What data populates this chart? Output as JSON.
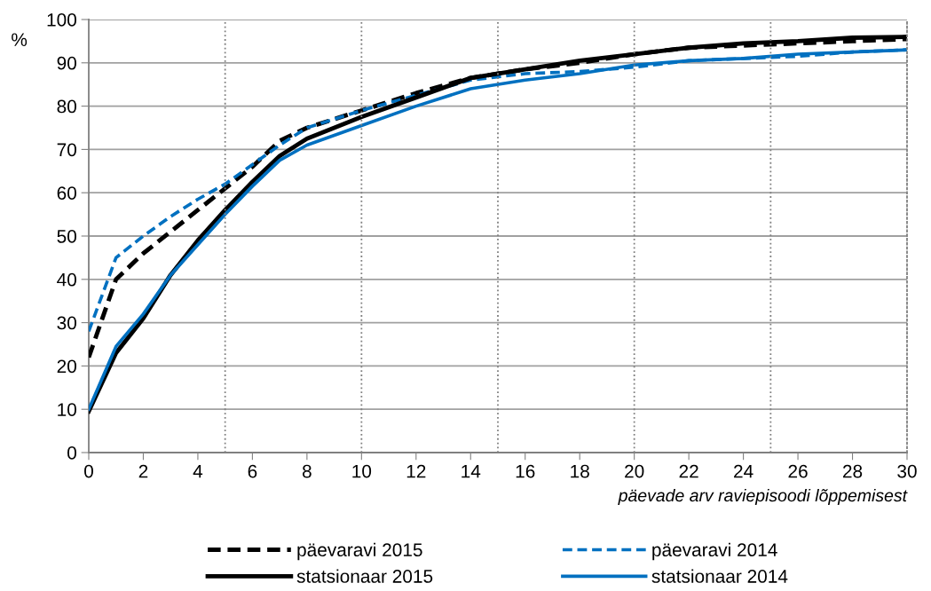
{
  "chart_data": {
    "type": "line",
    "xlabel": "päevade arv raviepisoodi lõppemisest",
    "ylabel": "%",
    "x": [
      0,
      1,
      2,
      3,
      4,
      5,
      6,
      7,
      8,
      10,
      12,
      14,
      16,
      18,
      20,
      22,
      24,
      26,
      28,
      30
    ],
    "series": [
      {
        "name": "päevaravi 2015",
        "color": "#000000",
        "line_style": "dashed",
        "values": [
          22,
          40,
          46,
          51,
          56,
          61,
          66,
          72,
          75,
          79,
          83,
          86.5,
          88.5,
          90,
          92,
          93.5,
          94,
          94.5,
          95,
          95.5
        ]
      },
      {
        "name": "päevaravi 2014",
        "color": "#0070c0",
        "line_style": "dashed",
        "values": [
          28,
          45,
          50,
          54.5,
          58.5,
          62,
          66.5,
          71,
          75,
          79,
          82.5,
          86,
          87.5,
          88,
          89,
          90.5,
          91,
          91.5,
          92.5,
          93
        ]
      },
      {
        "name": "statsionaar 2015",
        "color": "#000000",
        "line_style": "solid",
        "values": [
          9.5,
          23,
          31,
          41,
          49,
          56,
          62.5,
          68.5,
          72.5,
          77.5,
          82,
          86.5,
          88.5,
          90.5,
          92,
          93.5,
          94.5,
          95,
          95.8,
          96
        ]
      },
      {
        "name": "statsionaar 2014",
        "color": "#0070c0",
        "line_style": "solid",
        "values": [
          10,
          24.5,
          32,
          41,
          48,
          55,
          61.5,
          67.5,
          71,
          75.5,
          80,
          84,
          86,
          87.5,
          89.5,
          90.5,
          91,
          92,
          92.5,
          93
        ]
      }
    ],
    "xlim": [
      0,
      30
    ],
    "xticks": [
      0,
      2,
      4,
      6,
      8,
      10,
      12,
      14,
      16,
      18,
      20,
      22,
      24,
      26,
      28,
      30
    ],
    "ylim": [
      0,
      100
    ],
    "yticks": [
      0,
      10,
      20,
      30,
      40,
      50,
      60,
      70,
      80,
      90,
      100
    ],
    "grid": "y",
    "legend": "bottom",
    "marker": "none",
    "ref_lines": [
      {
        "axis": "x",
        "value": 5,
        "color": "#808080",
        "line_style": "dotted"
      },
      {
        "axis": "x",
        "value": 10,
        "color": "#808080",
        "line_style": "dotted"
      },
      {
        "axis": "x",
        "value": 15,
        "color": "#808080",
        "line_style": "dotted"
      },
      {
        "axis": "x",
        "value": 20,
        "color": "#808080",
        "line_style": "dotted"
      },
      {
        "axis": "x",
        "value": 25,
        "color": "#808080",
        "line_style": "dotted"
      }
    ]
  }
}
